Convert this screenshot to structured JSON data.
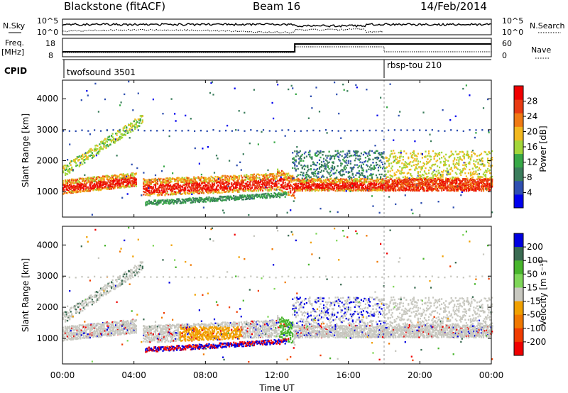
{
  "header": {
    "station": "Blackstone (fitACF)",
    "beam": "Beam 16",
    "date": "14/Feb/2014"
  },
  "params": {
    "nsky_label": "N.Sky",
    "nsearch_label": "N.Search",
    "noise_ticks": [
      "10^5",
      "10^0"
    ],
    "freq_label": "Freq.",
    "freq_unit": "[MHz]",
    "freq_ticks": [
      "18",
      "8"
    ],
    "nave_label": "Nave",
    "nave_ticks": [
      "60",
      "0"
    ],
    "cpid_label": "CPID",
    "cpid_segments": [
      {
        "name": "twofsound 3501",
        "start_hour": 0
      },
      {
        "name": "rbsp-tou 210",
        "start_hour": 18
      }
    ]
  },
  "colors": {
    "power": [
      "#0000ee",
      "#2f4fb0",
      "#3b7d5c",
      "#38a847",
      "#a3d63a",
      "#f2b81f",
      "#f07a14",
      "#e83a12",
      "#f00000"
    ],
    "velocity": [
      "#0000e0",
      "#3a6b52",
      "#48b52c",
      "#7fd659",
      "#c8c8c0",
      "#f0a000",
      "#f07800",
      "#f03c00",
      "#f00000"
    ]
  },
  "chart_data": [
    {
      "type": "heatmap",
      "title": "Power",
      "xlabel": "Time UT",
      "ylabel": "Slant Range [km]",
      "xlim_hours": [
        0,
        24
      ],
      "x_ticks": [
        "00:00",
        "04:00",
        "08:00",
        "12:00",
        "16:00",
        "20:00",
        "00:00"
      ],
      "ylim": [
        180,
        4600
      ],
      "y_ticks": [
        1000,
        2000,
        3000,
        4000
      ],
      "colorbar_label": "Power [dB]",
      "colorbar_ticks": [
        4,
        8,
        12,
        16,
        20,
        24,
        28
      ],
      "colorbar_range": [
        0,
        32
      ]
    },
    {
      "type": "heatmap",
      "title": "Velocity",
      "xlabel": "Time UT",
      "ylabel": "Slant Range [km]",
      "xlim_hours": [
        0,
        24
      ],
      "x_ticks": [
        "00:00",
        "04:00",
        "08:00",
        "12:00",
        "16:00",
        "20:00",
        "00:00"
      ],
      "ylim": [
        180,
        4600
      ],
      "y_ticks": [
        1000,
        2000,
        3000,
        4000
      ],
      "colorbar_label": "Velocity [m s⁻¹]",
      "colorbar_ticks": [
        "200",
        "100",
        "50",
        "15",
        "-15",
        "-50",
        "-100",
        "-200"
      ]
    }
  ],
  "xaxis_label": "Time UT"
}
